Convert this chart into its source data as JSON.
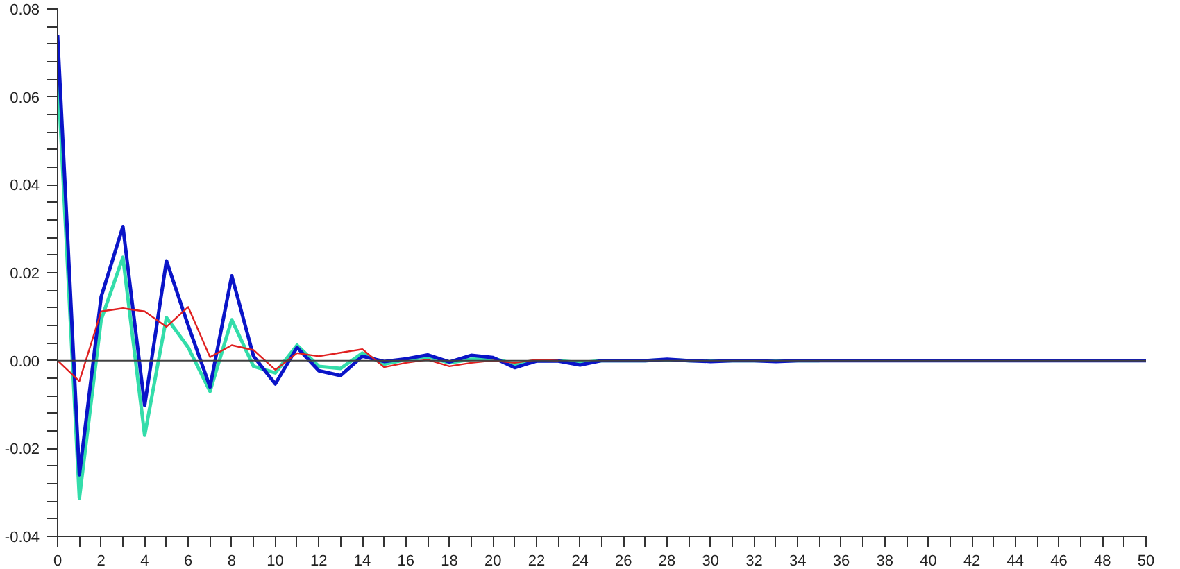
{
  "chart_data": {
    "type": "line",
    "x": [
      0,
      1,
      2,
      3,
      4,
      5,
      6,
      7,
      8,
      9,
      10,
      11,
      12,
      13,
      14,
      15,
      16,
      17,
      18,
      19,
      20,
      21,
      22,
      23,
      24,
      25,
      26,
      27,
      28,
      29,
      30,
      31,
      32,
      33,
      34,
      35,
      36,
      37,
      38,
      39,
      40,
      41,
      42,
      43,
      44,
      45,
      46,
      47,
      48,
      49,
      50
    ],
    "series": [
      {
        "color": "#33ddaa",
        "values": [
          0.066,
          -0.0313,
          0.0093,
          0.0235,
          -0.017,
          0.0098,
          0.003,
          -0.007,
          0.0093,
          -0.0013,
          -0.0028,
          0.0035,
          -0.0013,
          -0.0018,
          0.0017,
          -0.0008,
          0.0002,
          0.0008,
          -0.0005,
          0.0003,
          0.0005,
          -0.0008,
          0,
          0,
          -0.0005,
          0,
          0,
          0,
          0.0002,
          0,
          0,
          0,
          0,
          0,
          0,
          0,
          null,
          null,
          null,
          null,
          null,
          null,
          null,
          null,
          null,
          null,
          null,
          null,
          null,
          null,
          null
        ]
      },
      {
        "color": "#0a14c8",
        "values": [
          0.074,
          -0.026,
          0.0145,
          0.0305,
          -0.0102,
          0.0227,
          0.008,
          -0.006,
          0.0193,
          0.001,
          -0.0053,
          0.003,
          -0.0023,
          -0.0034,
          0.001,
          -0.0002,
          0.0004,
          0.0013,
          -0.0003,
          0.0012,
          0.0007,
          -0.0016,
          -0.0001,
          -0.0001,
          -0.001,
          0,
          0,
          0,
          0.0003,
          0,
          -0.0002,
          0,
          0,
          -0.0002,
          0,
          0,
          0,
          0,
          0,
          0,
          0,
          0,
          0,
          0,
          0,
          0,
          0,
          0,
          0,
          0,
          0
        ]
      },
      {
        "color": "#e02020",
        "values": [
          0,
          -0.0047,
          0.0112,
          0.0119,
          0.0112,
          0.0077,
          0.0122,
          0.0008,
          0.0035,
          0.0024,
          -0.0021,
          0.0017,
          0.001,
          0.0018,
          0.0026,
          -0.0015,
          -0.0005,
          0.0002,
          -0.0013,
          -0.0005,
          0,
          -0.0005,
          0.0002,
          0,
          null,
          null,
          null,
          null,
          null,
          null,
          null,
          null,
          null,
          null,
          null,
          null,
          null,
          null,
          null,
          null,
          null,
          null,
          null,
          null,
          null,
          null,
          null,
          null,
          null,
          null,
          null
        ]
      }
    ],
    "xlim": [
      0,
      50
    ],
    "ylim": [
      -0.04,
      0.08
    ],
    "xticks": [
      0,
      {
        "value": 1,
        "label": null
      },
      2,
      {
        "value": 3,
        "label": null
      },
      4,
      {
        "value": 5,
        "label": null
      },
      6,
      {
        "value": 7,
        "label": null
      },
      8,
      {
        "value": 9,
        "label": null
      },
      10,
      {
        "value": 11,
        "label": null
      },
      12,
      {
        "value": 13,
        "label": null
      },
      14,
      {
        "value": 15,
        "label": null
      },
      16,
      {
        "value": 17,
        "label": null
      },
      18,
      {
        "value": 19,
        "label": null
      },
      20,
      {
        "value": 21,
        "label": null
      },
      22,
      {
        "value": 23,
        "label": null
      },
      24,
      {
        "value": 25,
        "label": null
      },
      26,
      {
        "value": 27,
        "label": null
      },
      28,
      {
        "value": 29,
        "label": null
      },
      30,
      {
        "value": 31,
        "label": null
      },
      32,
      {
        "value": 33,
        "label": null
      },
      34,
      {
        "value": 35,
        "label": null
      },
      36,
      {
        "value": 37,
        "label": null
      },
      38,
      {
        "value": 39,
        "label": null
      },
      40,
      {
        "value": 41,
        "label": null
      },
      42,
      {
        "value": 43,
        "label": null
      },
      44,
      {
        "value": 45,
        "label": null
      },
      46,
      {
        "value": 47,
        "label": null
      },
      48,
      {
        "value": 49,
        "label": null
      },
      50
    ],
    "yticks": [
      {
        "value": -0.04,
        "label": "-0.04"
      },
      {
        "value": -0.036,
        "label": null
      },
      {
        "value": -0.032,
        "label": null
      },
      {
        "value": -0.028,
        "label": null
      },
      {
        "value": -0.024,
        "label": null
      },
      {
        "value": -0.02,
        "label": "-0.02"
      },
      {
        "value": -0.016,
        "label": null
      },
      {
        "value": -0.012,
        "label": null
      },
      {
        "value": -0.008,
        "label": null
      },
      {
        "value": -0.004,
        "label": null
      },
      {
        "value": 0,
        "label": "0.00"
      },
      {
        "value": 0.004,
        "label": null
      },
      {
        "value": 0.008,
        "label": null
      },
      {
        "value": 0.012,
        "label": null
      },
      {
        "value": 0.016,
        "label": null
      },
      {
        "value": 0.02,
        "label": "0.02"
      },
      {
        "value": 0.024,
        "label": null
      },
      {
        "value": 0.028,
        "label": null
      },
      {
        "value": 0.032,
        "label": null
      },
      {
        "value": 0.036,
        "label": null
      },
      {
        "value": 0.04,
        "label": "0.04"
      },
      {
        "value": 0.044,
        "label": null
      },
      {
        "value": 0.048,
        "label": null
      },
      {
        "value": 0.052,
        "label": null
      },
      {
        "value": 0.056,
        "label": null
      },
      {
        "value": 0.06,
        "label": "0.06"
      },
      {
        "value": 0.064,
        "label": null
      },
      {
        "value": 0.068,
        "label": null
      },
      {
        "value": 0.072,
        "label": null
      },
      {
        "value": 0.076,
        "label": null
      },
      {
        "value": 0.08,
        "label": "0.08"
      }
    ],
    "ref_lines": [
      {
        "axis": "y",
        "value": 0,
        "color": "#404040"
      }
    ],
    "grid": false,
    "marker": "none",
    "line_style": "solid"
  }
}
